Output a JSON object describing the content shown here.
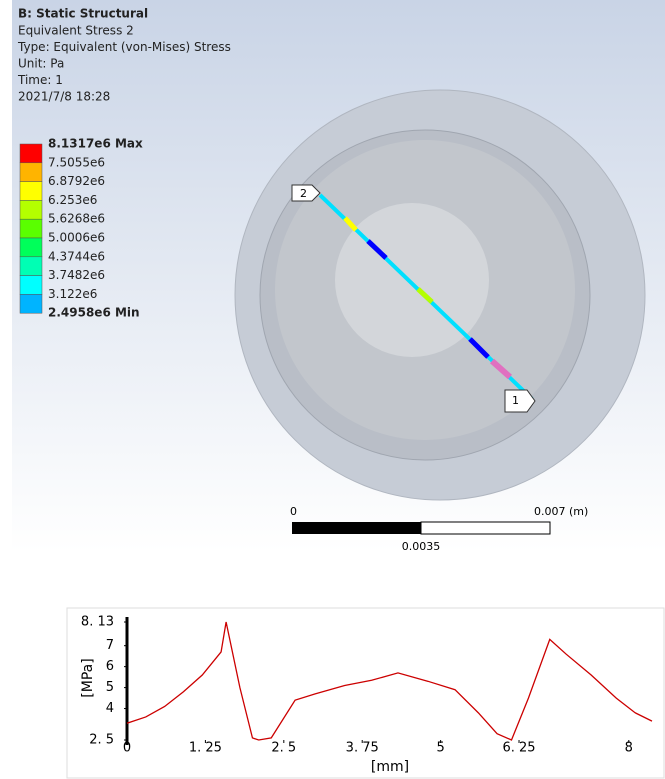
{
  "header": {
    "title": "B: Static Structural",
    "lines": [
      "Equivalent Stress 2",
      "Type: Equivalent (von-Mises) Stress",
      "Unit: Pa",
      "Time: 1",
      "2021/7/8 18:28"
    ]
  },
  "legend": {
    "labels": [
      "8.1317e6 Max",
      "7.5055e6",
      "6.8792e6",
      "6.253e6",
      "5.6268e6",
      "5.0006e6",
      "4.3744e6",
      "3.7482e6",
      "3.122e6",
      "2.4958e6 Min"
    ],
    "colors": [
      "#ff0000",
      "#ffb400",
      "#ffff00",
      "#b4ff00",
      "#5aff00",
      "#00ff5a",
      "#00ffb4",
      "#00ffff",
      "#00b4ff",
      "#0000ff"
    ]
  },
  "probes": [
    "1",
    "2"
  ],
  "scale_bar": {
    "start": "0",
    "end": "0.007 (m)",
    "middle": "0.0035"
  },
  "chart_data": {
    "type": "line",
    "xlabel": "[mm]",
    "ylabel": "[MPa]",
    "x": [
      0,
      0.3,
      0.6,
      0.9,
      1.2,
      1.5,
      1.58,
      1.8,
      2.0,
      2.1,
      2.3,
      2.68,
      3.0,
      3.47,
      3.9,
      4.32,
      4.8,
      5.23,
      5.6,
      5.9,
      6.13,
      6.4,
      6.74,
      7.0,
      7.4,
      7.8,
      8.1,
      8.37
    ],
    "series": [
      {
        "color": "#cc0000",
        "values": [
          3.3,
          3.6,
          4.1,
          4.8,
          5.6,
          6.7,
          8.13,
          5.0,
          2.6,
          2.5,
          2.6,
          4.4,
          4.7,
          5.1,
          5.35,
          5.7,
          5.3,
          4.9,
          3.8,
          2.8,
          2.5,
          4.5,
          7.3,
          6.6,
          5.6,
          4.5,
          3.8,
          3.4
        ]
      }
    ],
    "xlim": [
      0,
      8.37
    ],
    "ylim": [
      2.5,
      8.13
    ],
    "xticks": [
      0,
      {
        "value": 1.25,
        "label": "1. 25"
      },
      {
        "value": 2.5,
        "label": "2. 5"
      },
      {
        "value": 3.75,
        "label": "3. 75"
      },
      5,
      {
        "value": 6.25,
        "label": "6. 25"
      },
      8
    ],
    "yticks": [
      {
        "value": 2.5,
        "label": "2. 5"
      },
      4,
      5,
      6,
      7,
      {
        "value": 8.13,
        "label": "8. 13"
      }
    ]
  }
}
